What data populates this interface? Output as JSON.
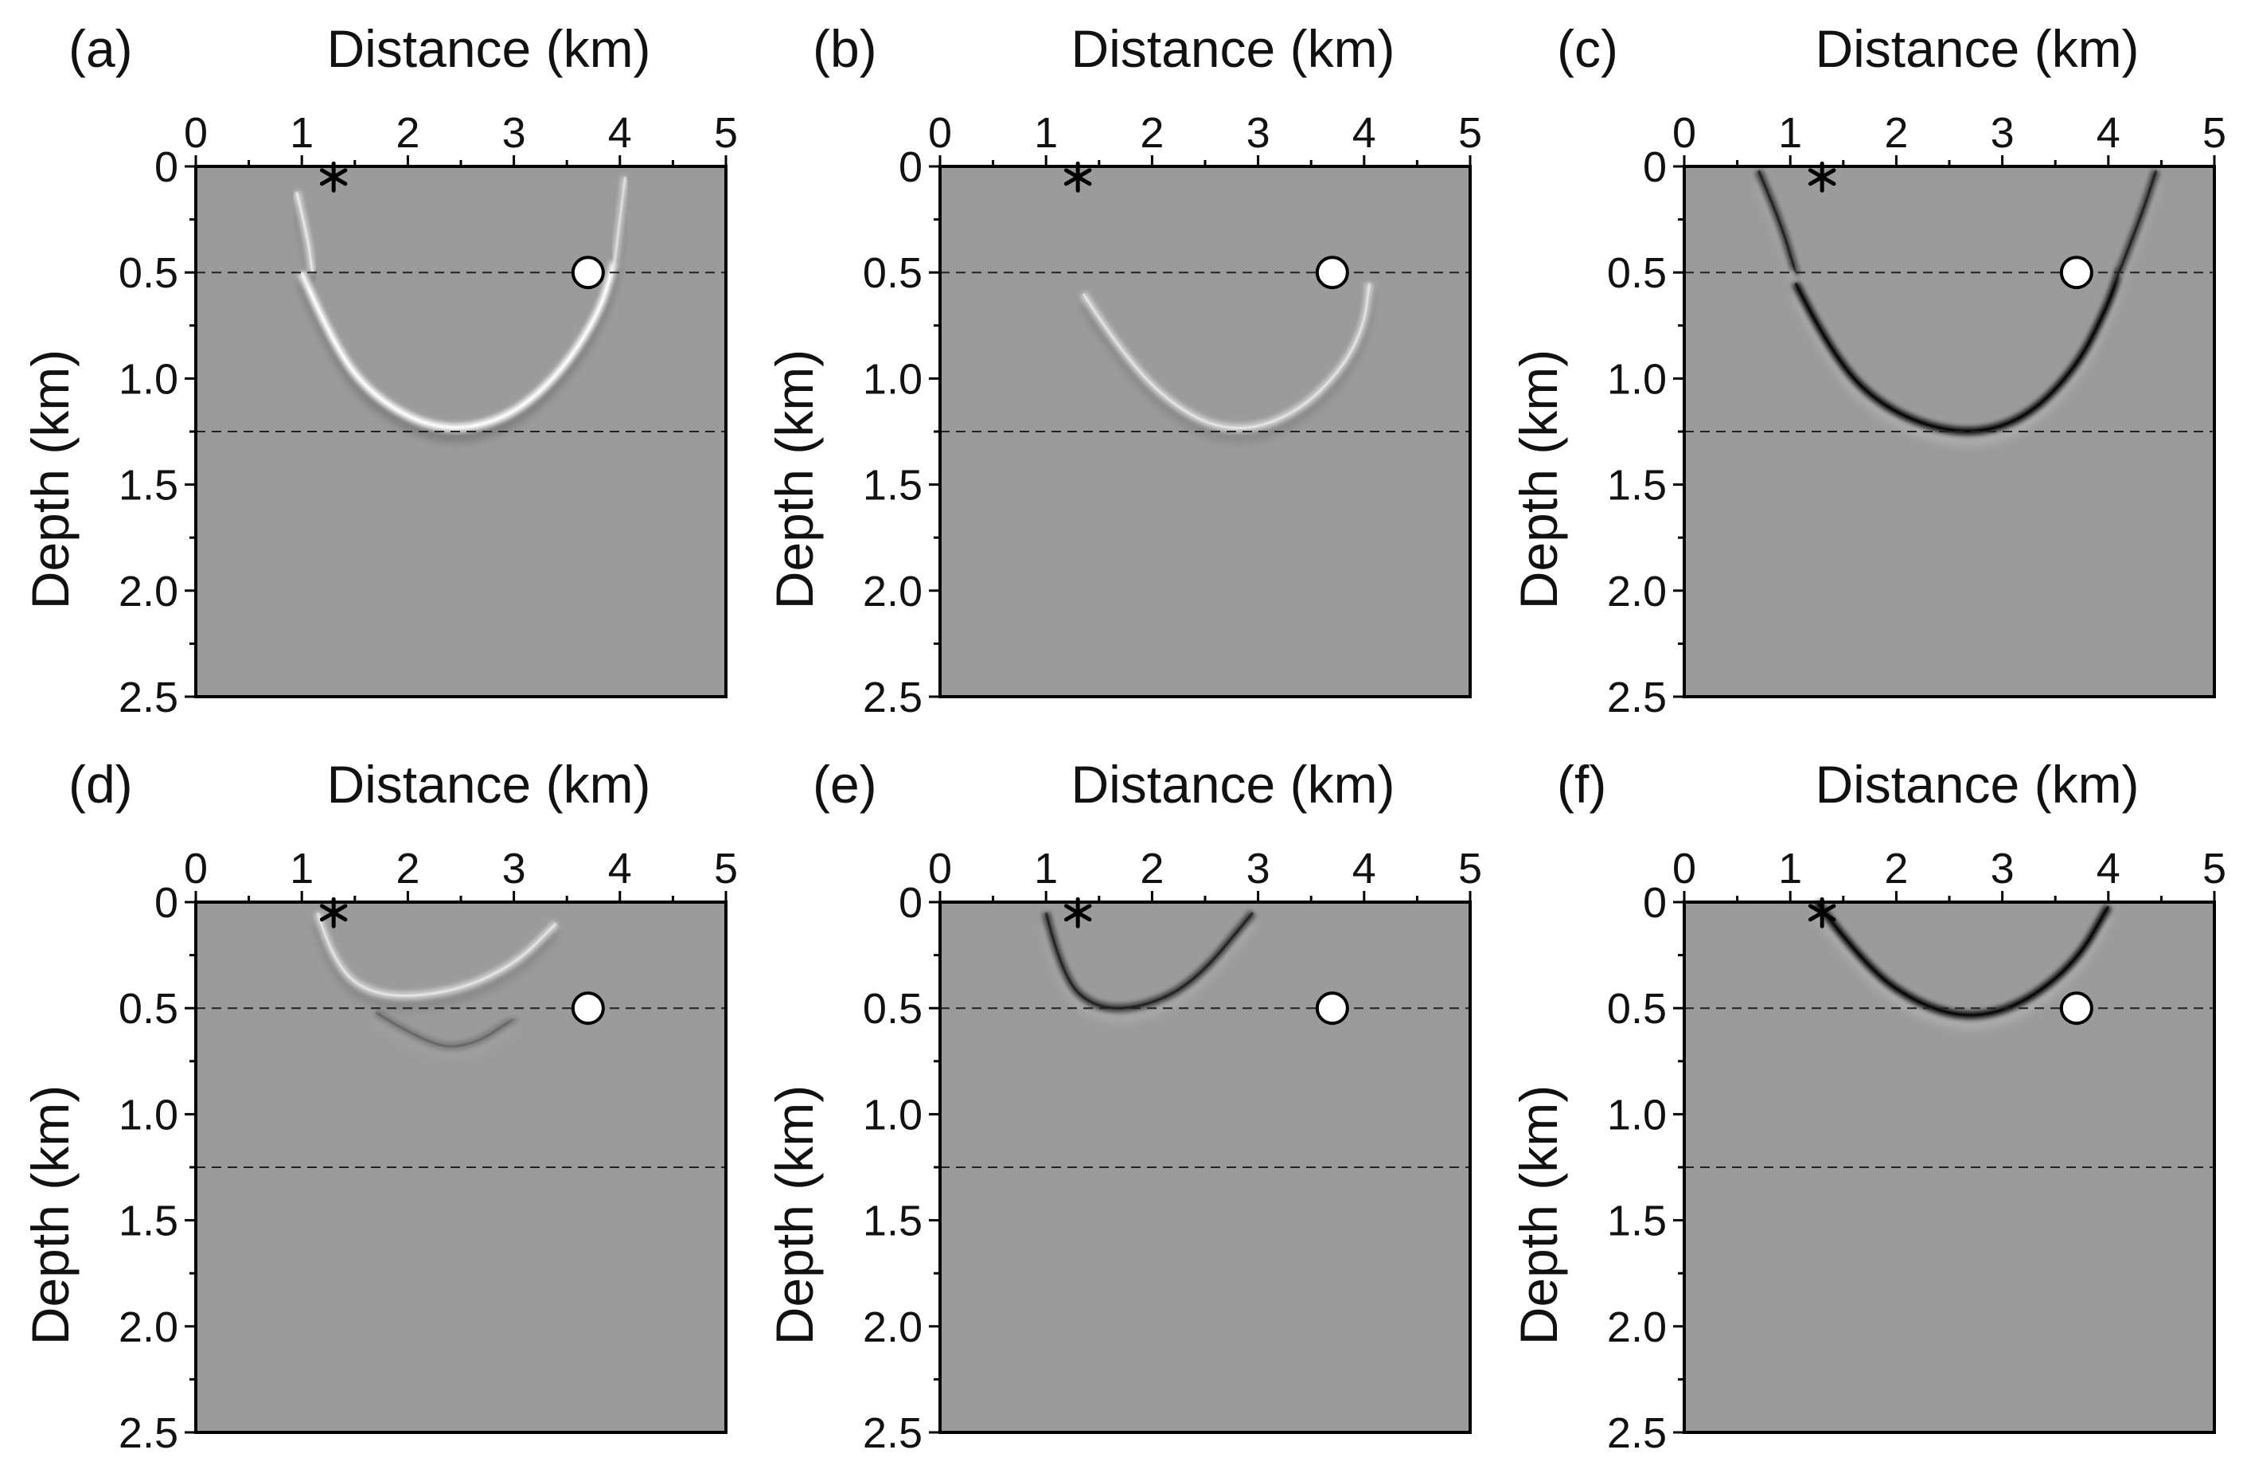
{
  "figure": {
    "panel_labels": [
      "(a)",
      "(b)",
      "(c)",
      "(d)",
      "(e)",
      "(f)"
    ],
    "xlabel": "Distance (km)",
    "ylabel": "Depth (km)",
    "x_ticks": [
      "0",
      "1",
      "2",
      "3",
      "4",
      "5"
    ],
    "y_ticks": [
      "0",
      "0.5",
      "1.0",
      "1.5",
      "2.0",
      "2.5"
    ]
  },
  "colors": {
    "background": "#9b9b9b",
    "frame": "#000000",
    "bright": "#ffffff",
    "dark": "#000000"
  },
  "chart_data": [
    {
      "type": "heatmap",
      "panel": "(a)",
      "xlabel": "Distance (km)",
      "ylabel": "Depth (km)",
      "xlim": [
        0,
        5
      ],
      "ylim": [
        0,
        2.5
      ],
      "y_inverted": true,
      "x_ticks": [
        0,
        1,
        2,
        3,
        4,
        5
      ],
      "y_ticks": [
        0,
        0.5,
        1.0,
        1.5,
        2.0,
        2.5
      ],
      "interfaces_depth": [
        0.5,
        1.25
      ],
      "source": {
        "x": 1.3,
        "z": 0.05,
        "marker": "star"
      },
      "receiver": {
        "x": 3.7,
        "z": 0.5,
        "marker": "circle"
      },
      "wavefronts": [
        {
          "name": "lower arc",
          "points": [
            [
              1.0,
              0.5
            ],
            [
              1.3,
              0.85
            ],
            [
              1.7,
              1.1
            ],
            [
              2.3,
              1.25
            ],
            [
              2.9,
              1.2
            ],
            [
              3.4,
              1.0
            ],
            [
              3.8,
              0.7
            ],
            [
              3.95,
              0.45
            ]
          ],
          "polarity": "white",
          "strength": 0.9
        },
        {
          "name": "upper left branch",
          "points": [
            [
              0.95,
              0.12
            ],
            [
              1.05,
              0.32
            ],
            [
              1.1,
              0.5
            ]
          ],
          "polarity": "white",
          "strength": 0.6
        },
        {
          "name": "upper right branch",
          "points": [
            [
              3.95,
              0.45
            ],
            [
              4.0,
              0.25
            ],
            [
              4.05,
              0.05
            ]
          ],
          "polarity": "white",
          "strength": 0.5
        }
      ]
    },
    {
      "type": "heatmap",
      "panel": "(b)",
      "xlabel": "Distance (km)",
      "ylabel": "Depth (km)",
      "xlim": [
        0,
        5
      ],
      "ylim": [
        0,
        2.5
      ],
      "y_inverted": true,
      "x_ticks": [
        0,
        1,
        2,
        3,
        4,
        5
      ],
      "y_ticks": [
        0,
        0.5,
        1.0,
        1.5,
        2.0,
        2.5
      ],
      "interfaces_depth": [
        0.5,
        1.25
      ],
      "source": {
        "x": 1.3,
        "z": 0.05,
        "marker": "star"
      },
      "receiver": {
        "x": 3.7,
        "z": 0.5,
        "marker": "circle"
      },
      "wavefronts": [
        {
          "name": "lower arc",
          "points": [
            [
              1.35,
              0.6
            ],
            [
              1.8,
              0.95
            ],
            [
              2.4,
              1.2
            ],
            [
              2.9,
              1.25
            ],
            [
              3.4,
              1.15
            ],
            [
              3.8,
              0.95
            ],
            [
              4.0,
              0.75
            ],
            [
              4.05,
              0.55
            ]
          ],
          "polarity": "white",
          "strength": 0.55
        }
      ]
    },
    {
      "type": "heatmap",
      "panel": "(c)",
      "xlabel": "Distance (km)",
      "ylabel": "Depth (km)",
      "xlim": [
        0,
        5
      ],
      "ylim": [
        0,
        2.5
      ],
      "y_inverted": true,
      "x_ticks": [
        0,
        1,
        2,
        3,
        4,
        5
      ],
      "y_ticks": [
        0,
        0.5,
        1.0,
        1.5,
        2.0,
        2.5
      ],
      "interfaces_depth": [
        0.5,
        1.25
      ],
      "source": {
        "x": 1.3,
        "z": 0.05,
        "marker": "star"
      },
      "receiver": {
        "x": 3.7,
        "z": 0.5,
        "marker": "circle"
      },
      "wavefronts": [
        {
          "name": "lower arc",
          "points": [
            [
              1.05,
              0.55
            ],
            [
              1.4,
              0.9
            ],
            [
              1.9,
              1.15
            ],
            [
              2.6,
              1.27
            ],
            [
              3.2,
              1.2
            ],
            [
              3.7,
              0.95
            ],
            [
              4.0,
              0.65
            ],
            [
              4.1,
              0.5
            ]
          ],
          "polarity": "black",
          "strength": 0.85
        },
        {
          "name": "upper left branch",
          "points": [
            [
              0.7,
              0.02
            ],
            [
              0.9,
              0.25
            ],
            [
              1.05,
              0.5
            ]
          ],
          "polarity": "black",
          "strength": 0.6
        },
        {
          "name": "upper right branch",
          "points": [
            [
              4.1,
              0.5
            ],
            [
              4.3,
              0.25
            ],
            [
              4.45,
              0.02
            ]
          ],
          "polarity": "black",
          "strength": 0.6
        }
      ]
    },
    {
      "type": "heatmap",
      "panel": "(d)",
      "xlabel": "Distance (km)",
      "ylabel": "Depth (km)",
      "xlim": [
        0,
        5
      ],
      "ylim": [
        0,
        2.5
      ],
      "y_inverted": true,
      "x_ticks": [
        0,
        1,
        2,
        3,
        4,
        5
      ],
      "y_ticks": [
        0,
        0.5,
        1.0,
        1.5,
        2.0,
        2.5
      ],
      "interfaces_depth": [
        0.5,
        1.25
      ],
      "source": {
        "x": 1.3,
        "z": 0.05,
        "marker": "star"
      },
      "receiver": {
        "x": 3.7,
        "z": 0.5,
        "marker": "circle"
      },
      "wavefronts": [
        {
          "name": "shallow arc",
          "points": [
            [
              1.15,
              0.05
            ],
            [
              1.3,
              0.3
            ],
            [
              1.7,
              0.45
            ],
            [
              2.4,
              0.43
            ],
            [
              3.0,
              0.3
            ],
            [
              3.4,
              0.1
            ]
          ],
          "polarity": "white",
          "strength": 0.55
        },
        {
          "name": "deep faint arc",
          "points": [
            [
              1.7,
              0.52
            ],
            [
              2.2,
              0.68
            ],
            [
              2.6,
              0.68
            ],
            [
              3.0,
              0.55
            ]
          ],
          "polarity": "black",
          "strength": 0.2
        }
      ]
    },
    {
      "type": "heatmap",
      "panel": "(e)",
      "xlabel": "Distance (km)",
      "ylabel": "Depth (km)",
      "xlim": [
        0,
        5
      ],
      "ylim": [
        0,
        2.5
      ],
      "y_inverted": true,
      "x_ticks": [
        0,
        1,
        2,
        3,
        4,
        5
      ],
      "y_ticks": [
        0,
        0.5,
        1.0,
        1.5,
        2.0,
        2.5
      ],
      "interfaces_depth": [
        0.5,
        1.25
      ],
      "source": {
        "x": 1.3,
        "z": 0.05,
        "marker": "star"
      },
      "receiver": {
        "x": 3.7,
        "z": 0.5,
        "marker": "circle"
      },
      "wavefronts": [
        {
          "name": "shallow arc",
          "points": [
            [
              1.0,
              0.05
            ],
            [
              1.15,
              0.35
            ],
            [
              1.45,
              0.5
            ],
            [
              1.9,
              0.5
            ],
            [
              2.4,
              0.38
            ],
            [
              2.95,
              0.05
            ]
          ],
          "polarity": "black",
          "strength": 0.6
        }
      ]
    },
    {
      "type": "heatmap",
      "panel": "(f)",
      "xlabel": "Distance (km)",
      "ylabel": "Depth (km)",
      "xlim": [
        0,
        5
      ],
      "ylim": [
        0,
        2.5
      ],
      "y_inverted": true,
      "x_ticks": [
        0,
        1,
        2,
        3,
        4,
        5
      ],
      "y_ticks": [
        0,
        0.5,
        1.0,
        1.5,
        2.0,
        2.5
      ],
      "interfaces_depth": [
        0.5,
        1.25
      ],
      "source": {
        "x": 1.3,
        "z": 0.05,
        "marker": "star"
      },
      "receiver": {
        "x": 3.7,
        "z": 0.5,
        "marker": "circle"
      },
      "wavefronts": [
        {
          "name": "shallow arc",
          "points": [
            [
              1.25,
              0.0
            ],
            [
              1.7,
              0.3
            ],
            [
              2.2,
              0.48
            ],
            [
              2.7,
              0.55
            ],
            [
              3.2,
              0.48
            ],
            [
              3.7,
              0.28
            ],
            [
              4.0,
              0.02
            ]
          ],
          "polarity": "black",
          "strength": 0.85
        }
      ]
    }
  ]
}
